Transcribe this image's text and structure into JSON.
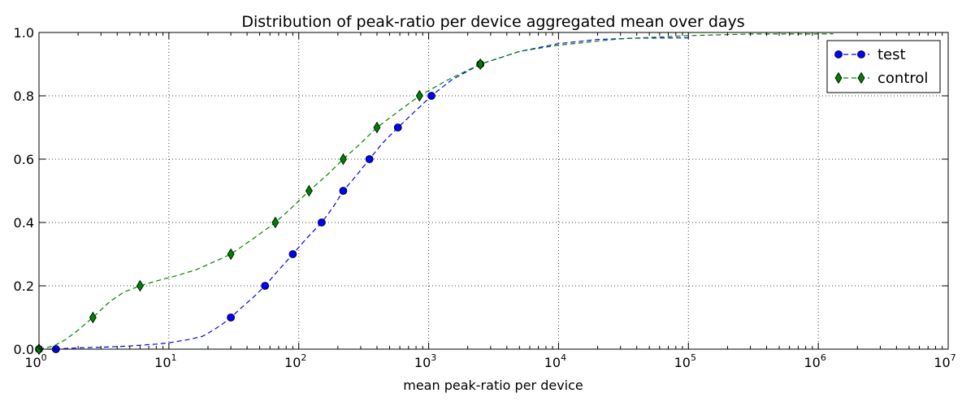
{
  "chart_data": {
    "type": "line",
    "title": "Distribution of peak-ratio per device aggregated mean over days",
    "xlabel": "mean peak-ratio per device",
    "ylabel": "",
    "xscale": "log",
    "xlim": [
      1,
      10000000
    ],
    "ylim": [
      0,
      1.0
    ],
    "x_ticks": [
      {
        "base": "10",
        "exp": "0"
      },
      {
        "base": "10",
        "exp": "1"
      },
      {
        "base": "10",
        "exp": "2"
      },
      {
        "base": "10",
        "exp": "3"
      },
      {
        "base": "10",
        "exp": "4"
      },
      {
        "base": "10",
        "exp": "5"
      },
      {
        "base": "10",
        "exp": "6"
      },
      {
        "base": "10",
        "exp": "7"
      }
    ],
    "y_ticks": [
      "0.0",
      "0.2",
      "0.4",
      "0.6",
      "0.8",
      "1.0"
    ],
    "grid": true,
    "legend_position": "top-right",
    "series": [
      {
        "name": "test",
        "color": "#0000ff",
        "marker": "circle",
        "line_style": "dashed",
        "curve": [
          [
            1,
            0.0
          ],
          [
            1.3,
            0.0
          ],
          [
            1.6,
            0.002
          ],
          [
            2,
            0.004
          ],
          [
            3,
            0.006
          ],
          [
            5,
            0.01
          ],
          [
            8,
            0.016
          ],
          [
            10,
            0.02
          ],
          [
            14,
            0.03
          ],
          [
            18,
            0.04
          ],
          [
            22,
            0.06
          ],
          [
            26,
            0.08
          ],
          [
            30,
            0.1
          ],
          [
            36,
            0.13
          ],
          [
            45,
            0.165
          ],
          [
            55,
            0.2
          ],
          [
            70,
            0.25
          ],
          [
            90,
            0.3
          ],
          [
            115,
            0.35
          ],
          [
            150,
            0.4
          ],
          [
            185,
            0.45
          ],
          [
            220,
            0.5
          ],
          [
            280,
            0.55
          ],
          [
            350,
            0.6
          ],
          [
            440,
            0.65
          ],
          [
            580,
            0.7
          ],
          [
            780,
            0.75
          ],
          [
            1050,
            0.8
          ],
          [
            1500,
            0.85
          ],
          [
            2500,
            0.9
          ],
          [
            5000,
            0.94
          ],
          [
            10000,
            0.965
          ],
          [
            20000,
            0.978
          ],
          [
            40000,
            0.982
          ],
          [
            100000,
            0.983
          ]
        ],
        "markers": [
          [
            1,
            0.0
          ],
          [
            1.35,
            0.0
          ],
          [
            30,
            0.1
          ],
          [
            55,
            0.2
          ],
          [
            90,
            0.3
          ],
          [
            150,
            0.4
          ],
          [
            220,
            0.5
          ],
          [
            350,
            0.6
          ],
          [
            580,
            0.7
          ],
          [
            1050,
            0.8
          ],
          [
            2500,
            0.9
          ]
        ]
      },
      {
        "name": "control",
        "color": "#008000",
        "marker": "diamond",
        "line_style": "dashed",
        "curve": [
          [
            1,
            0.0
          ],
          [
            1.3,
            0.01
          ],
          [
            1.6,
            0.03
          ],
          [
            2,
            0.06
          ],
          [
            2.6,
            0.1
          ],
          [
            3.5,
            0.15
          ],
          [
            4.5,
            0.18
          ],
          [
            6,
            0.2
          ],
          [
            8,
            0.215
          ],
          [
            11,
            0.23
          ],
          [
            16,
            0.25
          ],
          [
            22,
            0.275
          ],
          [
            30,
            0.3
          ],
          [
            45,
            0.35
          ],
          [
            66,
            0.4
          ],
          [
            90,
            0.45
          ],
          [
            120,
            0.5
          ],
          [
            165,
            0.55
          ],
          [
            220,
            0.6
          ],
          [
            300,
            0.65
          ],
          [
            400,
            0.7
          ],
          [
            580,
            0.75
          ],
          [
            850,
            0.8
          ],
          [
            1400,
            0.85
          ],
          [
            2500,
            0.9
          ],
          [
            5000,
            0.94
          ],
          [
            10000,
            0.96
          ],
          [
            30000,
            0.98
          ],
          [
            100000,
            0.99
          ],
          [
            300000,
            0.995
          ],
          [
            1000000,
            0.995
          ],
          [
            1300000,
            0.996
          ]
        ],
        "markers": [
          [
            1,
            0.0
          ],
          [
            2.6,
            0.1
          ],
          [
            6,
            0.2
          ],
          [
            30,
            0.3
          ],
          [
            66,
            0.4
          ],
          [
            120,
            0.5
          ],
          [
            220,
            0.6
          ],
          [
            400,
            0.7
          ],
          [
            850,
            0.8
          ],
          [
            2500,
            0.9
          ]
        ]
      }
    ]
  }
}
